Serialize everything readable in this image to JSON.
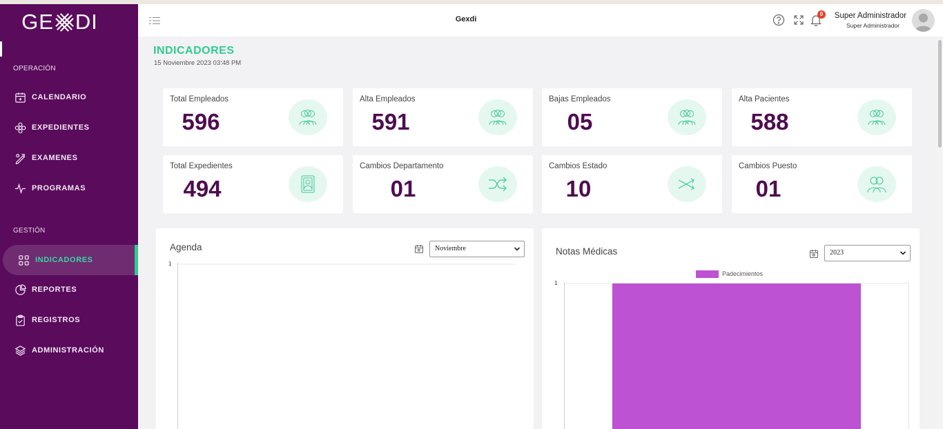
{
  "brand": {
    "logo_left": "GE",
    "logo_right": "DI"
  },
  "sidebar": {
    "sections": [
      {
        "label": "OPERACIÓN",
        "items": [
          {
            "label": "CALENDARIO",
            "icon": "calendar-plus-icon"
          },
          {
            "label": "EXPEDIENTES",
            "icon": "flower-icon"
          },
          {
            "label": "EXAMENES",
            "icon": "pencil-ruler-icon"
          },
          {
            "label": "PROGRAMAS",
            "icon": "activity-icon"
          }
        ]
      },
      {
        "label": "GESTIÓN",
        "items": [
          {
            "label": "INDICADORES",
            "icon": "grid-icon",
            "active": true
          },
          {
            "label": "REPORTES",
            "icon": "pie-chart-icon"
          },
          {
            "label": "REGISTROS",
            "icon": "clipboard-check-icon"
          },
          {
            "label": "ADMINISTRACIÓN",
            "icon": "layers-icon"
          }
        ]
      }
    ]
  },
  "header": {
    "title": "Gexdi",
    "notification_count": "0",
    "user_name": "Super Administrador",
    "user_role": "Super Administrador"
  },
  "page": {
    "title": "INDICADORES",
    "date": "15 Noviembre 2023 03:48 PM"
  },
  "cards": [
    {
      "label": "Total Empleados",
      "value": "596",
      "icon": "group-icon"
    },
    {
      "label": "Alta Empleados",
      "value": "591",
      "icon": "group-icon"
    },
    {
      "label": "Bajas Empleados",
      "value": "05",
      "icon": "group-icon"
    },
    {
      "label": "Alta Pacientes",
      "value": "588",
      "icon": "group-icon"
    },
    {
      "label": "Total Expedientes",
      "value": "494",
      "icon": "id-card-icon"
    },
    {
      "label": "Cambios Departamento",
      "value": "01",
      "icon": "shuffle-icon"
    },
    {
      "label": "Cambios Estado",
      "value": "10",
      "icon": "shuffle-thin-icon"
    },
    {
      "label": "Cambios Puesto",
      "value": "01",
      "icon": "two-users-icon"
    }
  ],
  "agenda": {
    "title": "Agenda",
    "selected_month": "Noviembre",
    "y_tick": "1"
  },
  "notas": {
    "title": "Notas Médicas",
    "selected_year": "2023"
  },
  "colors": {
    "sidebar": "#5a0b5c",
    "accent_green": "#2fcc8f",
    "value_purple": "#4f0c50",
    "bar": "#bd52d3"
  },
  "chart_data": {
    "type": "bar",
    "categories": [
      ""
    ],
    "series": [
      {
        "name": "Padecimientos",
        "values": [
          1
        ]
      }
    ],
    "ylim": [
      0,
      1
    ],
    "y_ticks": [
      "1"
    ],
    "legend": "top",
    "grid": false
  }
}
